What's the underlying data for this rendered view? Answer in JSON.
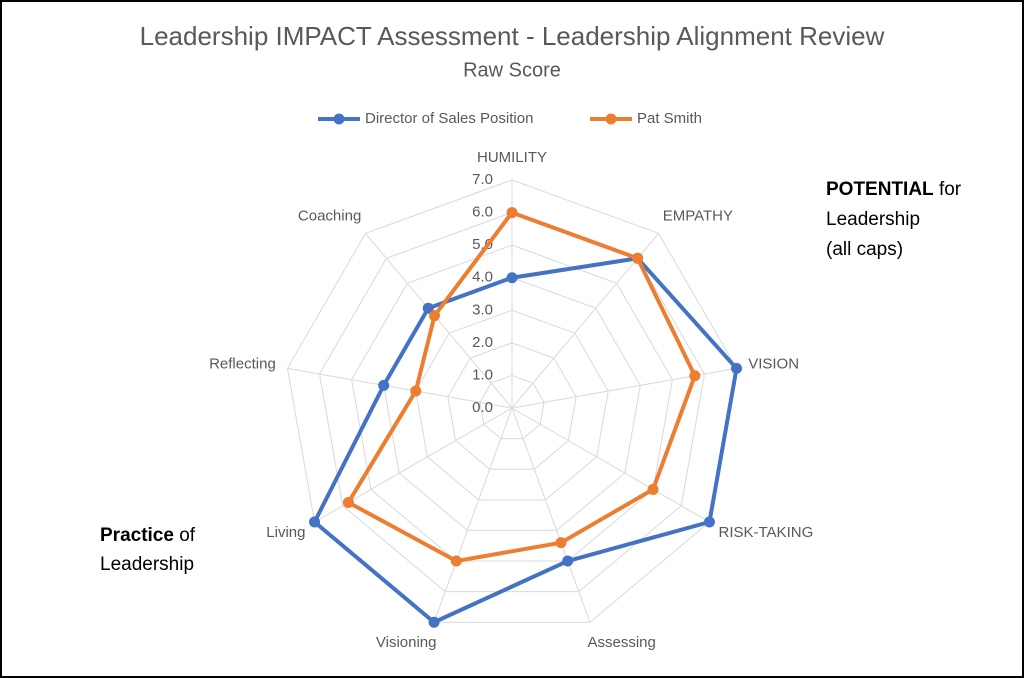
{
  "chart_data": {
    "type": "radar",
    "title": "Leadership IMPACT Assessment - Leadership Alignment Review",
    "subtitle": "Raw Score",
    "categories": [
      "HUMILITY",
      "EMPATHY",
      "VISION",
      "RISK-TAKING",
      "Assessing",
      "Visioning",
      "Living",
      "Reflecting",
      "Coaching"
    ],
    "series": [
      {
        "name": "Director of Sales Position",
        "color": "#4472c4",
        "values": [
          4.0,
          6.0,
          7.0,
          7.0,
          5.0,
          7.0,
          7.0,
          4.0,
          4.0
        ]
      },
      {
        "name": "Pat Smith",
        "color": "#ed7d31",
        "values": [
          6.0,
          6.0,
          5.7,
          5.0,
          4.4,
          5.0,
          5.8,
          3.0,
          3.7
        ]
      }
    ],
    "rlim": [
      0,
      7
    ],
    "rticks": [
      {
        "value": 0,
        "label": "0.0"
      },
      {
        "value": 1,
        "label": "1.0"
      },
      {
        "value": 2,
        "label": "2.0"
      },
      {
        "value": 3,
        "label": "3.0"
      },
      {
        "value": 4,
        "label": "4.0"
      },
      {
        "value": 5,
        "label": "5.0"
      },
      {
        "value": 6,
        "label": "6.0"
      },
      {
        "value": 7,
        "label": "7.0"
      }
    ],
    "grid": true,
    "legend": "top",
    "annotations": [
      {
        "bold": "POTENTIAL",
        "after": "for",
        "lines": [
          "Leadership",
          "(all caps)"
        ]
      },
      {
        "bold": "Practice",
        "after": "of",
        "lines": [
          "Leadership"
        ]
      }
    ]
  }
}
